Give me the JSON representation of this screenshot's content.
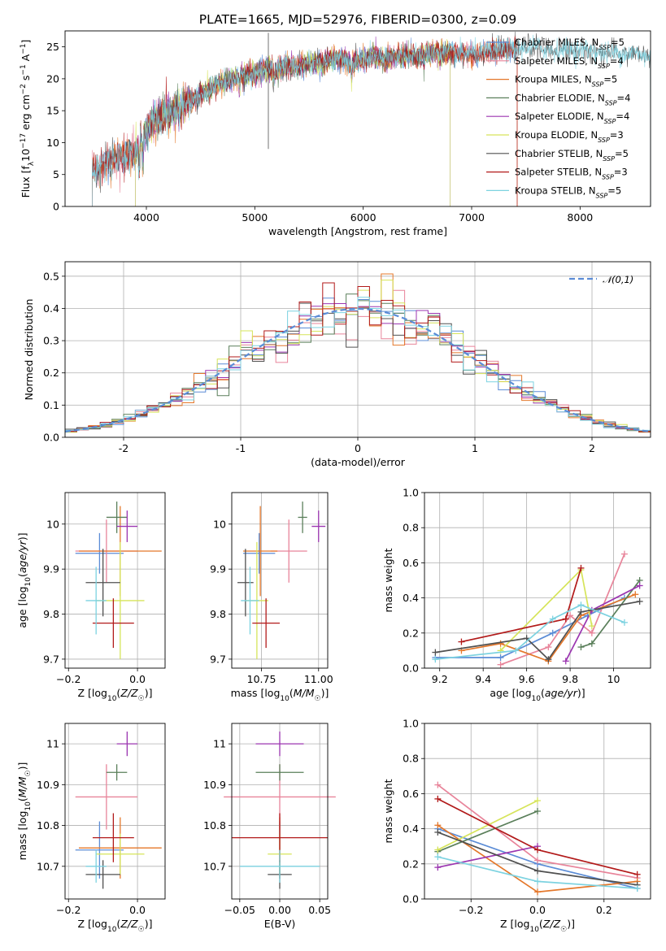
{
  "figure": {
    "title": "PLATE=1665, MJD=52976, FIBERID=0300, z=0.09"
  },
  "chart_data": [
    {
      "id": "spectrum",
      "type": "line",
      "xlabel": "wavelength [Angstrom, rest frame]",
      "ylabel": "Flux [f_λ10^-17 erg cm^-2 s^-1 A^-1]",
      "xlim": [
        3250,
        8650
      ],
      "ylim": [
        0,
        27.5
      ],
      "xticks": [
        4000,
        5000,
        6000,
        7000,
        8000
      ],
      "yticks": [
        0,
        5,
        10,
        15,
        20,
        25
      ],
      "grid": false,
      "legend_position": "top-right",
      "anchors": {
        "x": [
          3500,
          3600,
          3700,
          3800,
          3900,
          4000,
          4100,
          4200,
          4300,
          4400,
          4500,
          4600,
          4700,
          4800,
          4900,
          5000,
          5100,
          5200,
          5300,
          5400,
          5500,
          5600,
          5700,
          5800,
          5900,
          6000,
          6100,
          6200,
          6300,
          6400,
          6500,
          6600,
          6700,
          6800,
          6900,
          7000,
          7100,
          7200,
          7300,
          7400,
          7500,
          7600,
          7700,
          7800,
          7900,
          8000,
          8100,
          8200,
          8300,
          8400,
          8500,
          8600
        ],
        "y": [
          5.5,
          6.5,
          7.5,
          8.0,
          8.5,
          12.0,
          13.5,
          14.5,
          15.5,
          16.5,
          17.5,
          18.5,
          19.5,
          20.0,
          20.5,
          21.0,
          21.5,
          21.5,
          22.0,
          22.0,
          22.5,
          22.5,
          23.0,
          23.0,
          22.5,
          23.0,
          23.5,
          23.0,
          23.5,
          23.5,
          23.5,
          24.0,
          24.0,
          24.0,
          24.0,
          24.0,
          24.0,
          24.5,
          24.5,
          24.5,
          25.0,
          25.0,
          24.5,
          24.5,
          24.5,
          24.5,
          24.5,
          24.0,
          24.0,
          24.0,
          24.0,
          23.5
        ]
      },
      "series": [
        {
          "name": "Chabrier MILES, N_SSP=5",
          "color": "#5b8cd6",
          "range": [
            3500,
            7420
          ]
        },
        {
          "name": "Salpeter MILES, N_SSP=4",
          "color": "#e8849a",
          "range": [
            3500,
            7420
          ]
        },
        {
          "name": "Kroupa MILES, N_SSP=5",
          "color": "#e4772a",
          "range": [
            3500,
            7420
          ]
        },
        {
          "name": "Chabrier ELODIE, N_SSP=4",
          "color": "#5a7f5a",
          "range": [
            3900,
            6800
          ]
        },
        {
          "name": "Salpeter ELODIE, N_SSP=4",
          "color": "#9b35b0",
          "range": [
            3900,
            6800
          ]
        },
        {
          "name": "Kroupa ELODIE, N_SSP=3",
          "color": "#d6e45a",
          "range": [
            3900,
            6800
          ]
        },
        {
          "name": "Chabrier STELIB, N_SSP=5",
          "color": "#505050",
          "range": [
            3500,
            8650
          ]
        },
        {
          "name": "Salpeter STELIB, N_SSP=3",
          "color": "#b21a1a",
          "range": [
            3500,
            7420
          ]
        },
        {
          "name": "Kroupa STELIB, N_SSP=5",
          "color": "#7cd2e0",
          "range": [
            3500,
            8650
          ]
        }
      ]
    },
    {
      "id": "residual-histogram",
      "type": "step-histogram",
      "xlabel": "(data-model)/error",
      "ylabel": "Normed distribution",
      "xlim": [
        -2.5,
        2.5
      ],
      "ylim": [
        0,
        0.545
      ],
      "xticks": [
        -2,
        -1,
        0,
        1,
        2
      ],
      "ytick_labels": [
        "0.0",
        "0.1",
        "0.2",
        "0.3",
        "0.4",
        "0.5"
      ],
      "yticks": [
        0,
        0.1,
        0.2,
        0.3,
        0.4,
        0.5
      ],
      "grid": true,
      "legend_position": "top-right",
      "reference_curve": {
        "label": "𝒩(0,1)",
        "color": "#5b8cd6",
        "style": "dashed"
      },
      "bin_width": 0.1,
      "bin_start": -2.5,
      "bin_count": 50
    },
    {
      "id": "age-vs-Z",
      "type": "errorbar",
      "xlabel": "Z [log10(Z/Z☉)]",
      "ylabel": "age [log10(age/yr)]",
      "xlim": [
        -0.21,
        0.08
      ],
      "ylim": [
        9.68,
        10.07
      ],
      "xticks": [
        -0.2,
        0.0
      ],
      "xtick_labels": [
        "−0.2",
        "0.0"
      ],
      "yticks": [
        9.7,
        9.8,
        9.9,
        10.0
      ],
      "grid": true
    },
    {
      "id": "age-vs-mass",
      "type": "errorbar",
      "xlabel": "mass [log10(M/M☉)]",
      "ylabel": "",
      "xlim": [
        10.62,
        11.04
      ],
      "ylim": [
        9.68,
        10.07
      ],
      "xticks": [
        10.75,
        11.0
      ],
      "xtick_labels": [
        "10.75",
        "11.00"
      ],
      "yticks": [
        9.7,
        9.8,
        9.9,
        10.0
      ],
      "grid": true
    },
    {
      "id": "mass-weight-vs-age",
      "type": "line",
      "xlabel": "age [log10(age/yr)]",
      "ylabel": "mass weight",
      "xlim": [
        9.13,
        10.17
      ],
      "ylim": [
        0,
        1.0
      ],
      "xticks": [
        9.2,
        9.4,
        9.6,
        9.8,
        10.0
      ],
      "ytick_labels": [
        "0.0",
        "0.2",
        "0.4",
        "0.6",
        "0.8",
        "1.0"
      ],
      "yticks": [
        0,
        0.2,
        0.4,
        0.6,
        0.8,
        1.0
      ],
      "grid": true,
      "series": [
        {
          "color": "#5b8cd6",
          "x": [
            9.18,
            9.48,
            9.72,
            9.88,
            10.05
          ],
          "y": [
            0.06,
            0.06,
            0.2,
            0.3,
            0.4
          ]
        },
        {
          "color": "#e8849a",
          "x": [
            9.48,
            9.7,
            9.8,
            9.9,
            10.05
          ],
          "y": [
            0.02,
            0.12,
            0.3,
            0.2,
            0.65
          ]
        },
        {
          "color": "#e4772a",
          "x": [
            9.3,
            9.48,
            9.7,
            9.85,
            10.1
          ],
          "y": [
            0.1,
            0.14,
            0.04,
            0.3,
            0.42
          ]
        },
        {
          "color": "#5a7f5a",
          "x": [
            9.85,
            9.9,
            10.12
          ],
          "y": [
            0.12,
            0.14,
            0.5
          ]
        },
        {
          "color": "#9b35b0",
          "x": [
            9.78,
            9.9,
            10.12
          ],
          "y": [
            0.04,
            0.33,
            0.47
          ]
        },
        {
          "color": "#d6e45a",
          "x": [
            9.48,
            9.85,
            9.9
          ],
          "y": [
            0.1,
            0.56,
            0.24
          ]
        },
        {
          "color": "#505050",
          "x": [
            9.18,
            9.6,
            9.7,
            9.85,
            10.12
          ],
          "y": [
            0.09,
            0.17,
            0.05,
            0.32,
            0.38
          ]
        },
        {
          "color": "#b21a1a",
          "x": [
            9.3,
            9.78,
            9.85
          ],
          "y": [
            0.15,
            0.28,
            0.57
          ]
        },
        {
          "color": "#7cd2e0",
          "x": [
            9.18,
            9.55,
            9.72,
            9.85,
            10.05
          ],
          "y": [
            0.05,
            0.1,
            0.28,
            0.36,
            0.26
          ]
        }
      ]
    },
    {
      "id": "mass-vs-Z",
      "type": "errorbar",
      "xlabel": "Z [log10(Z/Z☉)]",
      "ylabel": "mass [log10(M/M☉)]",
      "xlim": [
        -0.21,
        0.08
      ],
      "ylim": [
        10.62,
        11.05
      ],
      "xticks": [
        -0.2,
        0.0
      ],
      "xtick_labels": [
        "−0.2",
        "0.0"
      ],
      "yticks": [
        10.7,
        10.8,
        10.9,
        11.0
      ],
      "grid": true
    },
    {
      "id": "mass-vs-EBV",
      "type": "errorbar",
      "xlabel": "E(B-V)",
      "ylabel": "",
      "xlim": [
        -0.06,
        0.06
      ],
      "ylim": [
        10.62,
        11.05
      ],
      "xticks": [
        -0.05,
        0.0,
        0.05
      ],
      "xtick_labels": [
        "−0.05",
        "0.00",
        "0.05"
      ],
      "yticks": [
        10.7,
        10.8,
        10.9,
        11.0
      ],
      "grid": true
    },
    {
      "id": "mass-weight-vs-Z",
      "type": "line",
      "xlabel": "Z [log10(Z/Z☉)]",
      "ylabel": "mass weight",
      "xlim": [
        -0.34,
        0.34
      ],
      "ylim": [
        0,
        1.0
      ],
      "xticks": [
        -0.2,
        0.0,
        0.2
      ],
      "xtick_labels": [
        "−0.2",
        "0.0",
        "0.2"
      ],
      "yticks": [
        0,
        0.2,
        0.4,
        0.6,
        0.8,
        1.0
      ],
      "ytick_labels": [
        "0.0",
        "0.2",
        "0.4",
        "0.6",
        "0.8",
        "1.0"
      ],
      "grid": true,
      "series": [
        {
          "color": "#5b8cd6",
          "x": [
            -0.3,
            0.0,
            0.3
          ],
          "y": [
            0.4,
            0.2,
            0.06
          ]
        },
        {
          "color": "#e8849a",
          "x": [
            -0.3,
            0.0,
            0.3
          ],
          "y": [
            0.65,
            0.22,
            0.12
          ]
        },
        {
          "color": "#e4772a",
          "x": [
            -0.3,
            0.0,
            0.3
          ],
          "y": [
            0.42,
            0.04,
            0.1
          ]
        },
        {
          "color": "#5a7f5a",
          "x": [
            -0.3,
            0.0
          ],
          "y": [
            0.27,
            0.5
          ]
        },
        {
          "color": "#9b35b0",
          "x": [
            -0.3,
            0.0
          ],
          "y": [
            0.18,
            0.3
          ]
        },
        {
          "color": "#d6e45a",
          "x": [
            -0.3,
            0.0
          ],
          "y": [
            0.28,
            0.56
          ]
        },
        {
          "color": "#505050",
          "x": [
            -0.3,
            0.0,
            0.3
          ],
          "y": [
            0.38,
            0.16,
            0.08
          ]
        },
        {
          "color": "#b21a1a",
          "x": [
            -0.3,
            0.0,
            0.3
          ],
          "y": [
            0.57,
            0.28,
            0.14
          ]
        },
        {
          "color": "#7cd2e0",
          "x": [
            -0.3,
            0.0,
            0.3
          ],
          "y": [
            0.24,
            0.1,
            0.06
          ]
        }
      ]
    }
  ],
  "fits": [
    {
      "color": "#5b8cd6",
      "Z": -0.11,
      "Z_err": 0.07,
      "age": 9.935,
      "age_err": 0.045,
      "mass": 10.74,
      "mass_err": 0.07,
      "ebv": 0.0,
      "ebv_err": 0.0
    },
    {
      "color": "#e8849a",
      "Z": -0.09,
      "Z_err": 0.09,
      "age": 9.94,
      "age_err": 0.07,
      "mass": 10.87,
      "mass_err": 0.08,
      "ebv": 0.0,
      "ebv_err": 0.07
    },
    {
      "color": "#e4772a",
      "Z": -0.05,
      "Z_err": 0.12,
      "age": 9.94,
      "age_err": 0.1,
      "mass": 10.745,
      "mass_err": 0.075,
      "ebv": 0.0,
      "ebv_err": 0.0
    },
    {
      "color": "#5a7f5a",
      "Z": -0.06,
      "Z_err": 0.03,
      "age": 10.015,
      "age_err": 0.035,
      "mass": 10.93,
      "mass_err": 0.02,
      "ebv": 0.0,
      "ebv_err": 0.03
    },
    {
      "color": "#9b35b0",
      "Z": -0.03,
      "Z_err": 0.03,
      "age": 9.995,
      "age_err": 0.035,
      "mass": 11.0,
      "mass_err": 0.03,
      "ebv": 0.0,
      "ebv_err": 0.03
    },
    {
      "color": "#d6e45a",
      "Z": -0.05,
      "Z_err": 0.07,
      "age": 9.83,
      "age_err": 0.13,
      "mass": 10.73,
      "mass_err": 0.05,
      "ebv": 0.0,
      "ebv_err": 0.015
    },
    {
      "color": "#505050",
      "Z": -0.1,
      "Z_err": 0.05,
      "age": 9.87,
      "age_err": 0.075,
      "mass": 10.68,
      "mass_err": 0.035,
      "ebv": 0.0,
      "ebv_err": 0.015
    },
    {
      "color": "#b21a1a",
      "Z": -0.07,
      "Z_err": 0.06,
      "age": 9.78,
      "age_err": 0.055,
      "mass": 10.77,
      "mass_err": 0.06,
      "ebv": 0.0,
      "ebv_err": 0.06
    },
    {
      "color": "#7cd2e0",
      "Z": -0.12,
      "Z_err": 0.03,
      "age": 9.83,
      "age_err": 0.075,
      "mass": 10.7,
      "mass_err": 0.04,
      "ebv": 0.0,
      "ebv_err": 0.05
    }
  ]
}
